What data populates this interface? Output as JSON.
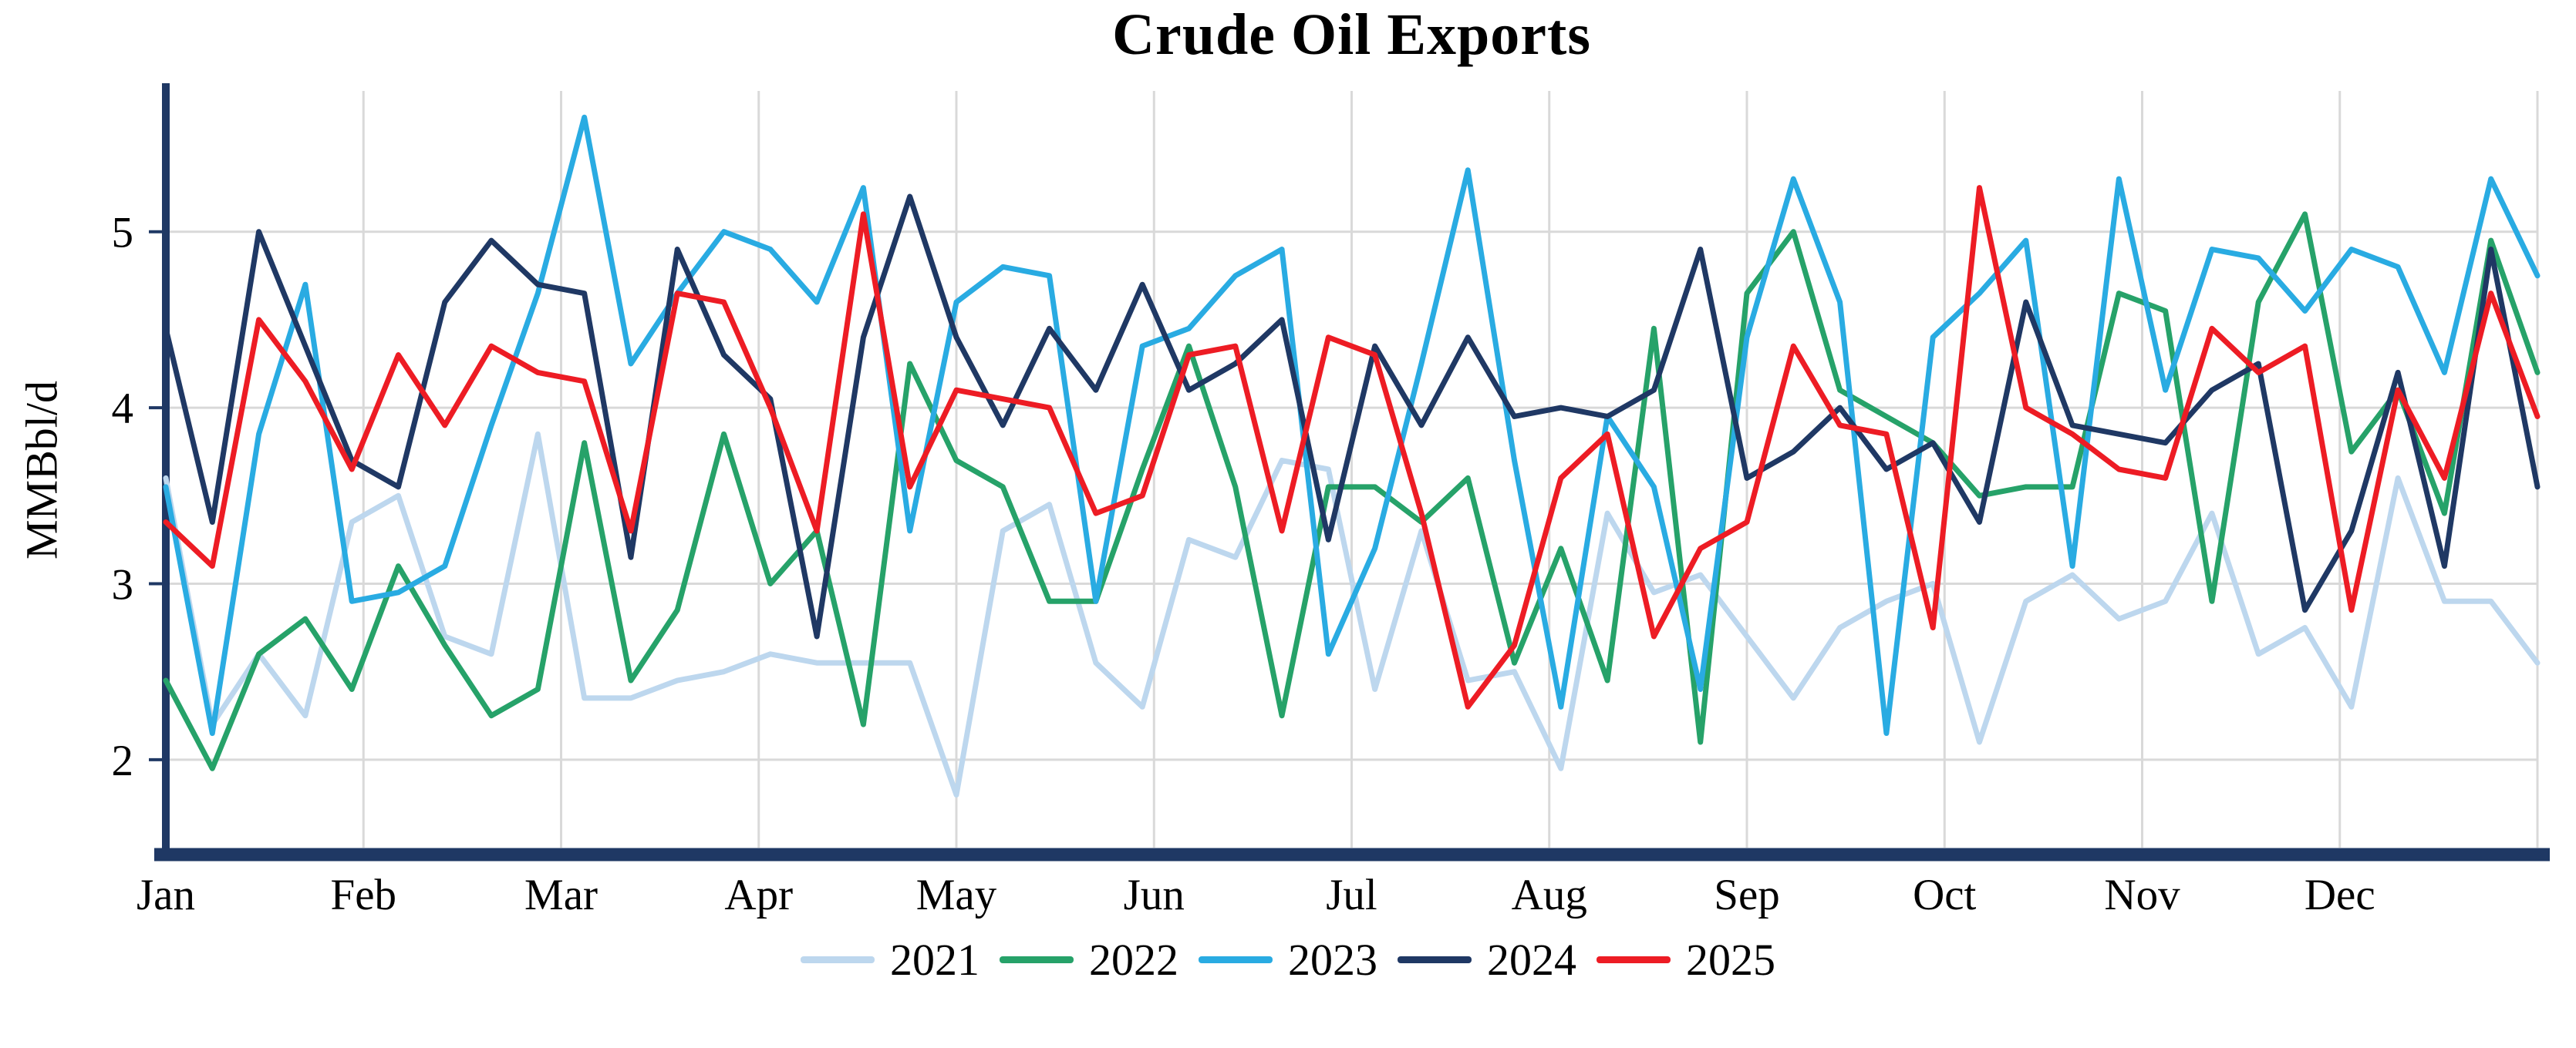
{
  "chart_data": {
    "type": "line",
    "title": "Crude Oil Exports",
    "ylabel": "MMBbl/d",
    "xlabel": "",
    "x_tick_labels": [
      "Jan",
      "Feb",
      "Mar",
      "Apr",
      "May",
      "Jun",
      "Jul",
      "Aug",
      "Sep",
      "Oct",
      "Nov",
      "Dec"
    ],
    "yticks": [
      2,
      3,
      4,
      5
    ],
    "ylim": [
      1.5,
      5.8
    ],
    "grid": true,
    "legend_position": "bottom",
    "points_per_series": 52,
    "series": [
      {
        "name": "2021",
        "color": "#BDD7EE",
        "values": [
          3.6,
          2.2,
          2.6,
          2.25,
          3.35,
          3.5,
          2.7,
          2.6,
          3.85,
          2.35,
          2.35,
          2.45,
          2.5,
          2.6,
          2.55,
          2.55,
          2.55,
          1.8,
          3.3,
          3.45,
          2.55,
          2.3,
          3.25,
          3.15,
          3.7,
          3.65,
          2.4,
          3.3,
          2.45,
          2.5,
          1.95,
          3.4,
          2.95,
          3.05,
          2.7,
          2.35,
          2.75,
          2.9,
          3.0,
          2.1,
          2.9,
          3.05,
          2.8,
          2.9,
          3.4,
          2.6,
          2.75,
          2.3,
          3.6,
          2.9,
          2.9,
          2.55
        ]
      },
      {
        "name": "2022",
        "color": "#26A269",
        "values": [
          2.45,
          1.95,
          2.6,
          2.8,
          2.4,
          3.1,
          2.65,
          2.25,
          2.4,
          3.8,
          2.45,
          2.85,
          3.85,
          3.0,
          3.3,
          2.2,
          4.25,
          3.7,
          3.55,
          2.9,
          2.9,
          3.65,
          4.35,
          3.55,
          2.25,
          3.55,
          3.55,
          3.35,
          3.6,
          2.55,
          3.2,
          2.45,
          4.45,
          2.1,
          4.65,
          5.0,
          4.1,
          3.95,
          3.8,
          3.5,
          3.55,
          3.55,
          4.65,
          4.55,
          2.9,
          4.6,
          5.1,
          3.75,
          4.1,
          3.4,
          4.95,
          4.2
        ]
      },
      {
        "name": "2023",
        "color": "#29ABE2",
        "values": [
          3.55,
          2.15,
          3.85,
          4.7,
          2.9,
          2.95,
          3.1,
          3.9,
          4.65,
          5.65,
          4.25,
          4.65,
          5.0,
          4.9,
          4.6,
          5.25,
          3.3,
          4.6,
          4.8,
          4.75,
          2.9,
          4.35,
          4.45,
          4.75,
          4.9,
          2.6,
          3.2,
          4.25,
          5.35,
          3.7,
          2.3,
          3.95,
          3.55,
          2.4,
          4.4,
          5.3,
          4.6,
          2.15,
          4.4,
          4.65,
          4.95,
          3.1,
          5.3,
          4.1,
          4.9,
          4.85,
          4.55,
          4.9,
          4.8,
          4.2,
          5.3,
          4.75
        ]
      },
      {
        "name": "2024",
        "color": "#1F3864",
        "values": [
          4.45,
          3.35,
          5.0,
          4.35,
          3.7,
          3.55,
          4.6,
          4.95,
          4.7,
          4.65,
          3.15,
          4.9,
          4.3,
          4.05,
          2.7,
          4.4,
          5.2,
          4.4,
          3.9,
          4.45,
          4.1,
          4.7,
          4.1,
          4.25,
          4.5,
          3.25,
          4.35,
          3.9,
          4.4,
          3.95,
          4.0,
          3.95,
          4.1,
          4.9,
          3.6,
          3.75,
          4.0,
          3.65,
          3.8,
          3.35,
          4.6,
          3.9,
          3.85,
          3.8,
          4.1,
          4.25,
          2.85,
          3.3,
          4.2,
          3.1,
          4.9,
          3.55
        ]
      },
      {
        "name": "2025",
        "color": "#ED1C24",
        "values": [
          3.35,
          3.1,
          4.5,
          4.15,
          3.65,
          4.3,
          3.9,
          4.35,
          4.2,
          4.15,
          3.3,
          4.65,
          4.6,
          4.0,
          3.3,
          5.1,
          3.55,
          4.1,
          4.05,
          4.0,
          3.4,
          3.5,
          4.3,
          4.35,
          3.3,
          4.4,
          4.3,
          3.4,
          2.3,
          2.65,
          3.6,
          3.85,
          2.7,
          3.2,
          3.35,
          4.35,
          3.9,
          3.85,
          2.75,
          5.25,
          4.0,
          3.85,
          3.65,
          3.6,
          4.45,
          4.2,
          4.35,
          2.85,
          4.1,
          3.6,
          4.65,
          3.95
        ]
      }
    ]
  },
  "colors": {
    "axis": "#1F3864",
    "grid": "#D9D9D9",
    "background": "#FFFFFF",
    "text": "#000000"
  }
}
